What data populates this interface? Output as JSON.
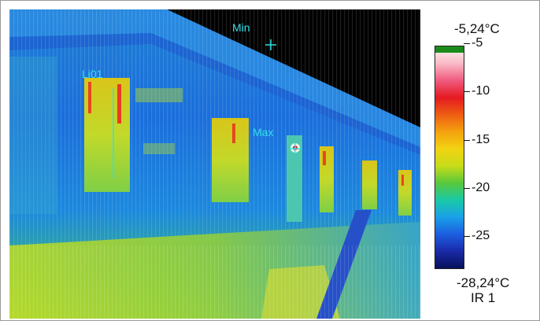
{
  "thermal_image": {
    "markers": {
      "min": "Min",
      "max": "Max",
      "line": "Li01"
    }
  },
  "scale": {
    "max_label": "-5,24°C",
    "min_label": "-28,24°C",
    "image_id": "IR 1",
    "ticks": [
      "-5",
      "-10",
      "-15",
      "-20",
      "-25"
    ],
    "tick_values": [
      -5,
      -10,
      -15,
      -20,
      -25
    ],
    "range": [
      -28.24,
      -5.24
    ],
    "gradient_colors": [
      "#06115a",
      "#1a2aa8",
      "#1c5ee0",
      "#1aa0e8",
      "#19c9a6",
      "#58c83c",
      "#c8dc18",
      "#f2d312",
      "#f4a20e",
      "#ee5d13",
      "#e41a22",
      "#f05a7e",
      "#f9b9c6",
      "#fff6f6"
    ],
    "top_band_color": "#1b8c1b"
  }
}
